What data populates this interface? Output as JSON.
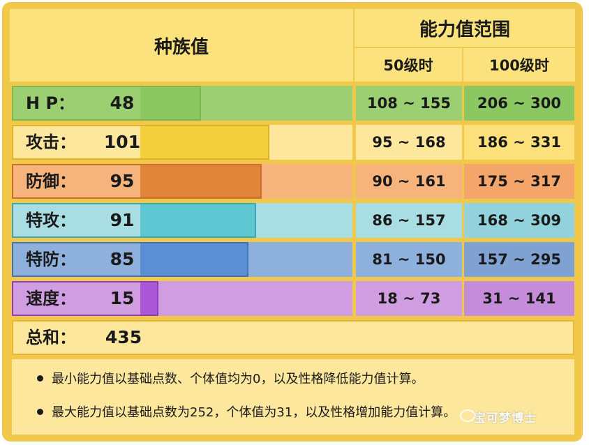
{
  "header": {
    "base_stats": "种族值",
    "stat_range": "能力值范围",
    "lv50": "50级时",
    "lv100": "100级时"
  },
  "stats": [
    {
      "name": "H P：",
      "value": "48",
      "fill": 0.48,
      "range50": "108 ~ 155",
      "range100": "206 ~ 300",
      "colors": {
        "bg": "#9bcf71",
        "bar": "#8bc862",
        "box": "#7cb84f",
        "r50": "#9bcf71",
        "r100": "#8bc862"
      }
    },
    {
      "name": "攻击：",
      "value": "101",
      "fill": 1.01,
      "range50": "95 ~ 168",
      "range100": "186 ~ 331",
      "colors": {
        "bg": "#fce79c",
        "bar": "#f4cf3c",
        "box": "#e0b42a",
        "r50": "#fce79c",
        "r100": "#fce07a"
      }
    },
    {
      "name": "防御：",
      "value": "95",
      "fill": 0.95,
      "range50": "90 ~ 161",
      "range100": "175 ~ 317",
      "colors": {
        "bg": "#f6b37c",
        "bar": "#e0853a",
        "box": "#c9702a",
        "r50": "#f6b37c",
        "r100": "#f3a56a"
      }
    },
    {
      "name": "特攻：",
      "value": "91",
      "fill": 0.91,
      "range50": "86 ~ 157",
      "range100": "168 ~ 309",
      "colors": {
        "bg": "#a9dde4",
        "bar": "#5fc8d3",
        "box": "#3aa8b4",
        "r50": "#a9dde4",
        "r100": "#92d2dc"
      }
    },
    {
      "name": "特防：",
      "value": "85",
      "fill": 0.85,
      "range50": "81 ~ 150",
      "range100": "157 ~ 295",
      "colors": {
        "bg": "#8eb0dc",
        "bar": "#5a8fd6",
        "box": "#3f72b8",
        "r50": "#8eb0dc",
        "r100": "#7fa2d3"
      }
    },
    {
      "name": "速度：",
      "value": "15",
      "fill": 0.15,
      "range50": "18 ~ 73",
      "range100": "31 ~ 141",
      "colors": {
        "bg": "#d09de0",
        "bar": "#a957d6",
        "box": "#8a3fb8",
        "r50": "#d09de0",
        "r100": "#c48cd9"
      }
    }
  ],
  "total": {
    "name": "总和：",
    "value": "435"
  },
  "notes": [
    "最小能力值以基础点数、个体值均为0，以及性格降低能力值计算。",
    "最大能力值以基础点数为252，个体值为31，以及性格增加能力值计算。"
  ],
  "watermark": "宝可梦博士",
  "colors": {
    "frame": "#f2c84b",
    "header": "#fbe27c",
    "panel": "#fce79c"
  }
}
